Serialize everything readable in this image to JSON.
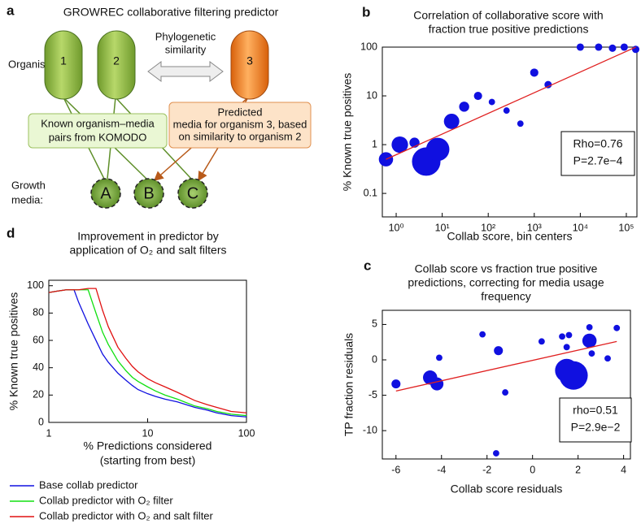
{
  "diagram": {
    "panel_label": "a",
    "title": "GROWREC collaborative filtering predictor",
    "organisms_label": "Organisms:",
    "organisms": [
      "1",
      "2",
      "3"
    ],
    "similarity": [
      "Phylogenetic",
      "similarity"
    ],
    "known_box": [
      "Known organism–media",
      "pairs from KOMODO"
    ],
    "predicted_box": [
      "Predicted",
      "media for organism 3, based",
      "on similarity to organism 2"
    ],
    "media_label": [
      "Growth",
      "media:"
    ],
    "media": [
      "A",
      "B",
      "C"
    ]
  },
  "chart_data": [
    {
      "type": "scatter",
      "panel_label": "b",
      "title": [
        "Correlation of collaborative score with",
        "fraction true positive predictions"
      ],
      "xlabel": "Collab score, bin centers",
      "ylabel": "% Known true positives",
      "xscale": "log",
      "yscale": "log",
      "xlim": [
        0.5,
        170000
      ],
      "ylim": [
        0.033,
        100
      ],
      "xticks": [
        {
          "value": 1,
          "label": "10⁰"
        },
        {
          "value": 10,
          "label": "10¹"
        },
        {
          "value": 100,
          "label": "10²"
        },
        {
          "value": 1000,
          "label": "10³"
        },
        {
          "value": 10000,
          "label": "10⁴"
        },
        {
          "value": 100000,
          "label": "10⁵"
        }
      ],
      "yticks": [
        0.1,
        1,
        10,
        100
      ],
      "color": "#1010e0",
      "x": [
        0.6,
        1.2,
        2.5,
        4.5,
        8,
        16,
        30,
        60,
        120,
        250,
        500,
        1000,
        2000,
        10000,
        25000,
        50000,
        90000,
        160000
      ],
      "values": [
        0.5,
        1.0,
        1.1,
        0.45,
        0.8,
        3.0,
        6,
        10,
        7.5,
        5,
        2.7,
        30,
        17,
        100,
        100,
        95,
        100,
        90
      ],
      "sizes": [
        30,
        40,
        15,
        120,
        80,
        35,
        15,
        10,
        6,
        6,
        6,
        10,
        8,
        8,
        8,
        8,
        8,
        8
      ],
      "fit": {
        "x": [
          0.6,
          160000
        ],
        "y": [
          0.5,
          100
        ],
        "color": "#e02020"
      },
      "annotations": [
        "Rho=0.76",
        "P=2.7e−4"
      ]
    },
    {
      "type": "scatter",
      "panel_label": "c",
      "title": [
        "Collab score vs fraction true positive",
        "predictions, correcting for media usage",
        "frequency"
      ],
      "xlabel": "Collab score residuals",
      "ylabel": "TP fraction residuals",
      "xlim": [
        -6.6,
        4.3
      ],
      "ylim": [
        -14,
        7
      ],
      "xticks": [
        -6,
        -4,
        -2,
        0,
        2,
        4
      ],
      "yticks": [
        5,
        0,
        -5,
        -10
      ],
      "color": "#1010e0",
      "x": [
        -6,
        -4.5,
        -4.2,
        -4.1,
        -2.2,
        -1.6,
        -1.5,
        -1.2,
        0.4,
        1.3,
        1.5,
        1.8,
        1.5,
        1.6,
        2.5,
        2.5,
        2.6,
        3.3,
        3.7
      ],
      "values": [
        -3.4,
        -2.5,
        -3.4,
        0.3,
        3.6,
        -13.2,
        1.3,
        -4.6,
        2.6,
        3.3,
        -1.5,
        -2.2,
        1.8,
        3.5,
        2.7,
        4.6,
        0.9,
        0.2,
        4.5
      ],
      "sizes": [
        12,
        30,
        25,
        6,
        6,
        6,
        12,
        6,
        6,
        6,
        80,
        120,
        6,
        6,
        30,
        6,
        6,
        6,
        6
      ],
      "fit": {
        "x": [
          -6,
          3.7
        ],
        "y": [
          -4.4,
          2.6
        ],
        "color": "#e02020"
      },
      "annotations": [
        "rho=0.51",
        "P=2.9e−2"
      ]
    },
    {
      "type": "line",
      "panel_label": "d",
      "title": [
        "Improvement in predictor by",
        "application of O₂ and salt filters"
      ],
      "xlabel": [
        "% Predictions considered",
        "(starting from best)"
      ],
      "ylabel": "% Known true positives",
      "xscale": "log",
      "xlim": [
        1,
        100
      ],
      "ylim": [
        0,
        104
      ],
      "xticks": [
        1,
        10,
        100
      ],
      "yticks": [
        0,
        20,
        40,
        60,
        80,
        100
      ],
      "legend": "below",
      "x": [
        1,
        1.2,
        1.5,
        1.8,
        2,
        2.5,
        3,
        3.5,
        4,
        5,
        6,
        7,
        8,
        10,
        12,
        15,
        20,
        30,
        40,
        50,
        70,
        100
      ],
      "series": [
        {
          "name": "Base collab predictor",
          "color": "#1010e0",
          "values": [
            95,
            96,
            97,
            97,
            88,
            72,
            60,
            50,
            44,
            36,
            31,
            27,
            24,
            21,
            19,
            17,
            15,
            11,
            9,
            7,
            5,
            4
          ]
        },
        {
          "name": "Collab predictor with O₂ filter",
          "color": "#10e010",
          "values": [
            95,
            96,
            97,
            97,
            97,
            97,
            80,
            66,
            57,
            45,
            38,
            33,
            30,
            26,
            23,
            20,
            17,
            12,
            10,
            8,
            6,
            5
          ]
        },
        {
          "name": "Collab predictor with O₂ and salt filter",
          "color": "#e01010",
          "values": [
            95,
            96,
            97,
            97,
            97,
            98,
            98,
            82,
            70,
            55,
            47,
            41,
            37,
            32,
            29,
            26,
            22,
            16,
            13,
            11,
            8,
            7
          ]
        }
      ]
    }
  ]
}
